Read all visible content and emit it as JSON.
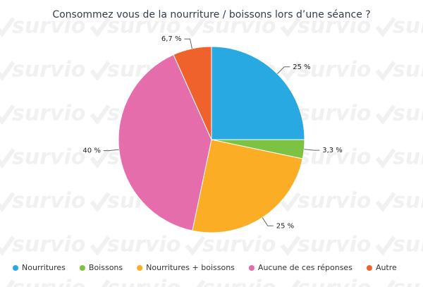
{
  "watermark": "survio",
  "chart_data": {
    "type": "pie",
    "title": "Consommez vous de la nourriture / boissons lors d’une séance ?",
    "categories": [
      "Nourritures",
      "Boissons",
      "Nourritures + boissons",
      "Aucune de ces réponses",
      "Autre"
    ],
    "values": [
      25,
      3.3,
      25,
      40,
      6.7
    ],
    "value_labels": [
      "25 %",
      "3,3 %",
      "25 %",
      "40 %",
      "6,7 %"
    ],
    "colors": [
      "#29a9e1",
      "#7dc243",
      "#fbad26",
      "#e66dab",
      "#f0622b"
    ],
    "legend": "bottom"
  }
}
